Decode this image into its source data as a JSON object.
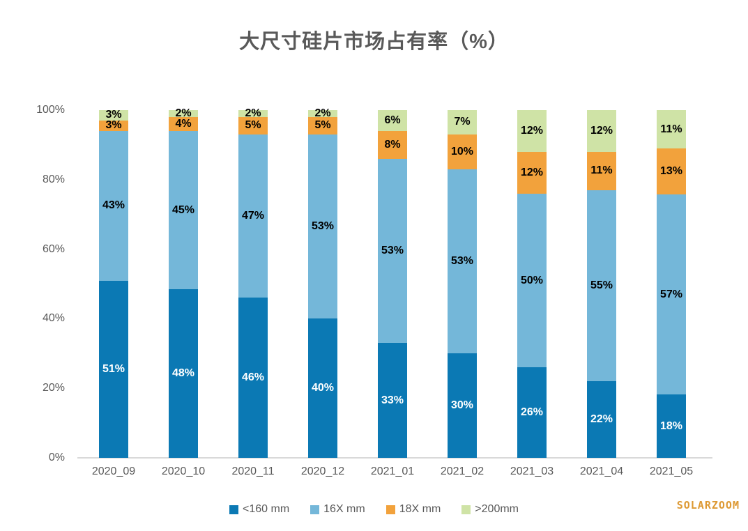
{
  "title": "大尺寸硅片市场占有率（%）",
  "watermark": "SOLARZOOM",
  "colors": {
    "series_dark_blue": "#0b79b4",
    "series_light_blue": "#74b7d9",
    "series_orange": "#f2a23c",
    "series_green": "#cfe3a6",
    "axis_text": "#595959",
    "baseline": "#d9d9d9",
    "title_text": "#595959",
    "watermark_orange": "#dd9933",
    "label_on_dark": "#ffffff",
    "label_on_light": "#000000"
  },
  "chart_data": {
    "type": "bar",
    "stacked": true,
    "title": "大尺寸硅片市场占有率（%）",
    "categories": [
      "2020_09",
      "2020_10",
      "2020_11",
      "2020_12",
      "2021_01",
      "2021_02",
      "2021_03",
      "2021_04",
      "2021_05"
    ],
    "series": [
      {
        "name": "<160 mm",
        "color": "#0b79b4",
        "label_color": "#ffffff",
        "values": [
          51,
          48,
          46,
          40,
          33,
          30,
          26,
          22,
          18
        ]
      },
      {
        "name": "16X mm",
        "color": "#74b7d9",
        "label_color": "#000000",
        "values": [
          43,
          45,
          47,
          53,
          53,
          53,
          50,
          55,
          57
        ]
      },
      {
        "name": "18X mm",
        "color": "#f2a23c",
        "label_color": "#000000",
        "values": [
          3,
          4,
          5,
          5,
          8,
          10,
          12,
          11,
          13
        ]
      },
      {
        "name": ">200mm",
        "color": "#cfe3a6",
        "label_color": "#000000",
        "values": [
          3,
          2,
          2,
          2,
          6,
          7,
          12,
          12,
          11
        ]
      }
    ],
    "data_label_suffix": "%",
    "y_ticks": [
      0,
      20,
      40,
      60,
      80,
      100
    ],
    "y_tick_suffix": "%",
    "ylim": [
      0,
      100
    ],
    "grid": false,
    "legend_position": "bottom"
  }
}
